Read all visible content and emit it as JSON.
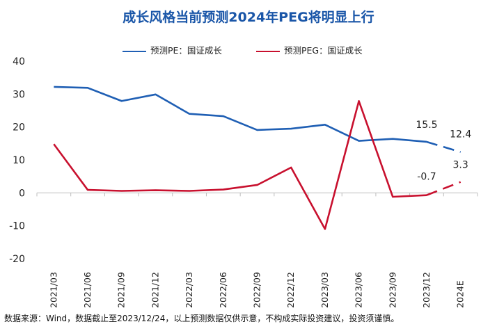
{
  "title": "成长风格当前预测2024年PEG将明显上行",
  "source": "数据来源：Wind，数据截止至2023/12/24，以上预测数据仅供示意，不构成实际投资建议，投资须谨慎。",
  "colors": {
    "pe": "#1f5fb4",
    "peg": "#c8102e",
    "axis": "#bdbdbd",
    "text": "#222222"
  },
  "chart_data": {
    "type": "line",
    "title": "成长风格当前预测2024年PEG将明显上行",
    "categories": [
      "2021/03",
      "2021/06",
      "2021/09",
      "2021/12",
      "2022/03",
      "2022/06",
      "2022/09",
      "2022/12",
      "2023/03",
      "2023/06",
      "2023/09",
      "2023/12",
      "2024E"
    ],
    "ylim": [
      -20,
      40
    ],
    "yticks": [
      -20,
      -10,
      0,
      10,
      20,
      30,
      40
    ],
    "grid": false,
    "legend_position": "top",
    "series": [
      {
        "name": "预测PE：国证成长",
        "color": "#1f5fb4",
        "values": [
          32.2,
          31.9,
          27.9,
          29.9,
          24.0,
          23.3,
          19.1,
          19.5,
          20.7,
          15.8,
          16.4,
          15.5,
          12.4
        ],
        "dashed_last_segment": true
      },
      {
        "name": "预测PEG：国证成长",
        "color": "#c8102e",
        "values": [
          14.8,
          0.9,
          0.6,
          0.8,
          0.6,
          1.0,
          2.4,
          7.7,
          -11.0,
          27.9,
          -1.2,
          -0.7,
          3.3
        ],
        "dashed_last_segment": true
      }
    ],
    "annotations": [
      {
        "series": 0,
        "index": 11,
        "label": "15.5"
      },
      {
        "series": 0,
        "index": 12,
        "label": "12.4"
      },
      {
        "series": 1,
        "index": 11,
        "label": "-0.7"
      },
      {
        "series": 1,
        "index": 12,
        "label": "3.3"
      }
    ]
  }
}
